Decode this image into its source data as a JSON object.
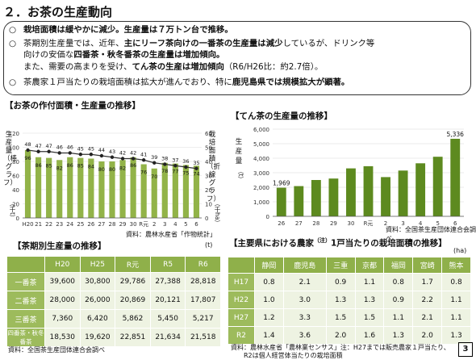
{
  "page_title": "２．お茶の生産動向",
  "summary": {
    "bullet": "○",
    "lines": [
      {
        "plain_pre": "",
        "bold": "栽培面積は緩やかに減少。生産量は７万トン台で推移。",
        "plain_post": ""
      },
      {
        "plain_pre": "茶期別生産量では、近年、",
        "bold": "主にリーフ茶向けの一番茶の生産量は減少",
        "plain_post": "しているが、ドリンク等"
      },
      {
        "plain_pre": "向けの安価な",
        "bold": "四番茶・秋冬番茶の生産量は増加傾向。",
        "plain_post": ""
      },
      {
        "plain_pre": "また、需要の高まりを受け、",
        "bold": "てん茶の生産は増加傾向",
        "plain_post": "（R6/H26比：約2.7倍）。"
      },
      {
        "plain_pre": "茶農家１戸当たりの栽培面積は拡大が進んでおり、特に",
        "bold": "鹿児島県では規模拡大が顕著。",
        "plain_post": ""
      }
    ]
  },
  "chart1": {
    "title": "【お茶の作付面積・生産量の推移】",
    "left_axis_label": "生産量（棒グラフ）",
    "left_axis_unit": "（千t）",
    "right_axis_label": "栽培面積（折線グラフ）",
    "right_axis_unit": "（千ha）",
    "source": "資料：農林水産省「作物統計」"
  },
  "chart2": {
    "title": "【てん茶の生産量の推移】",
    "axis_label": "生産量",
    "axis_unit": "（t）",
    "source": "資料：全国茶生産団体連合会調べ"
  },
  "table1": {
    "title": "【茶期別生産量の推移】",
    "unit": "(t)",
    "headers": [
      "",
      "H20",
      "H25",
      "R元",
      "R5",
      "R6"
    ],
    "rows": [
      [
        "一番茶",
        "39,600",
        "30,800",
        "29,786",
        "27,388",
        "28,818"
      ],
      [
        "二番茶",
        "28,000",
        "26,000",
        "20,869",
        "20,121",
        "17,807"
      ],
      [
        "三番茶",
        "7,360",
        "6,420",
        "5,862",
        "5,450",
        "5,217"
      ],
      [
        "四番茶・秋冬番茶",
        "18,530",
        "19,620",
        "22,851",
        "21,634",
        "21,518"
      ]
    ],
    "source": "資料：全国茶生産団体連合会調べ"
  },
  "table2": {
    "title": "【主要県における農家",
    "title_mark": "（注）",
    "title_rest": "1戸当たりの栽培面積の推移】",
    "unit": "(ha)",
    "headers": [
      "",
      "静岡",
      "鹿児島",
      "三重",
      "京都",
      "福岡",
      "宮崎",
      "熊本"
    ],
    "rows": [
      [
        "H17",
        "0.8",
        "2.1",
        "0.9",
        "1.1",
        "0.8",
        "1.7",
        "0.8"
      ],
      [
        "H22",
        "1.0",
        "3.0",
        "1.3",
        "1.3",
        "0.9",
        "2.2",
        "1.1"
      ],
      [
        "H27",
        "1.2",
        "3.3",
        "1.5",
        "1.5",
        "1.1",
        "2.1",
        "1.1"
      ],
      [
        "R2",
        "1.4",
        "3.6",
        "2.0",
        "1.6",
        "1.3",
        "2.0",
        "1.3"
      ]
    ],
    "source1": "資料：農林水産省「農林業センサス」注：H27までは販売農家１戸当たり、",
    "source2": "R2は個人経営体当たりの栽培面積"
  },
  "page_number": "3",
  "colors": {
    "bar_green": "#92b348",
    "dark_green": "#5d8a1f",
    "line_dark": "#333333",
    "table_head": "#8fb04a",
    "table_rowhead": "#9dbb5c",
    "table_cell": "#eef3e2"
  },
  "chart_data": [
    {
      "type": "bar",
      "categories": [
        "H20",
        "21",
        "22",
        "23",
        "24",
        "25",
        "26",
        "27",
        "28",
        "29",
        "30",
        "R元",
        "2",
        "3",
        "4",
        "5",
        "6"
      ],
      "series": [
        {
          "type": "bar",
          "axis": "left",
          "values": [
            96,
            86,
            85,
            82,
            86,
            85,
            84,
            80,
            80,
            82,
            86,
            76,
            70,
            78,
            77,
            75,
            74
          ]
        },
        {
          "type": "line",
          "axis": "right",
          "values": [
            48,
            47,
            47,
            46,
            46,
            45,
            45,
            44,
            43,
            42,
            42,
            41,
            39,
            38,
            37,
            36,
            35
          ]
        }
      ],
      "ylim_left": [
        0,
        60
      ],
      "ylim_right": [
        0,
        60
      ]
    },
    {
      "type": "bar",
      "categories": [
        "26",
        "27",
        "28",
        "29",
        "30",
        "R元",
        "2",
        "3",
        "4",
        "5",
        "6"
      ],
      "values": [
        1969,
        2080,
        2500,
        2600,
        3300,
        3450,
        2700,
        3150,
        3650,
        4100,
        5336
      ],
      "data_labels": {
        "0": "1,969",
        "10": "5,336"
      },
      "ylim": [
        0,
        6000
      ],
      "yticks": [
        0,
        1000,
        2000,
        3000,
        4000,
        5000,
        6000
      ],
      "ytick_labels": [
        "0",
        "1,000",
        "2,000",
        "3,000",
        "4,000",
        "5,000",
        "6,000"
      ]
    }
  ]
}
